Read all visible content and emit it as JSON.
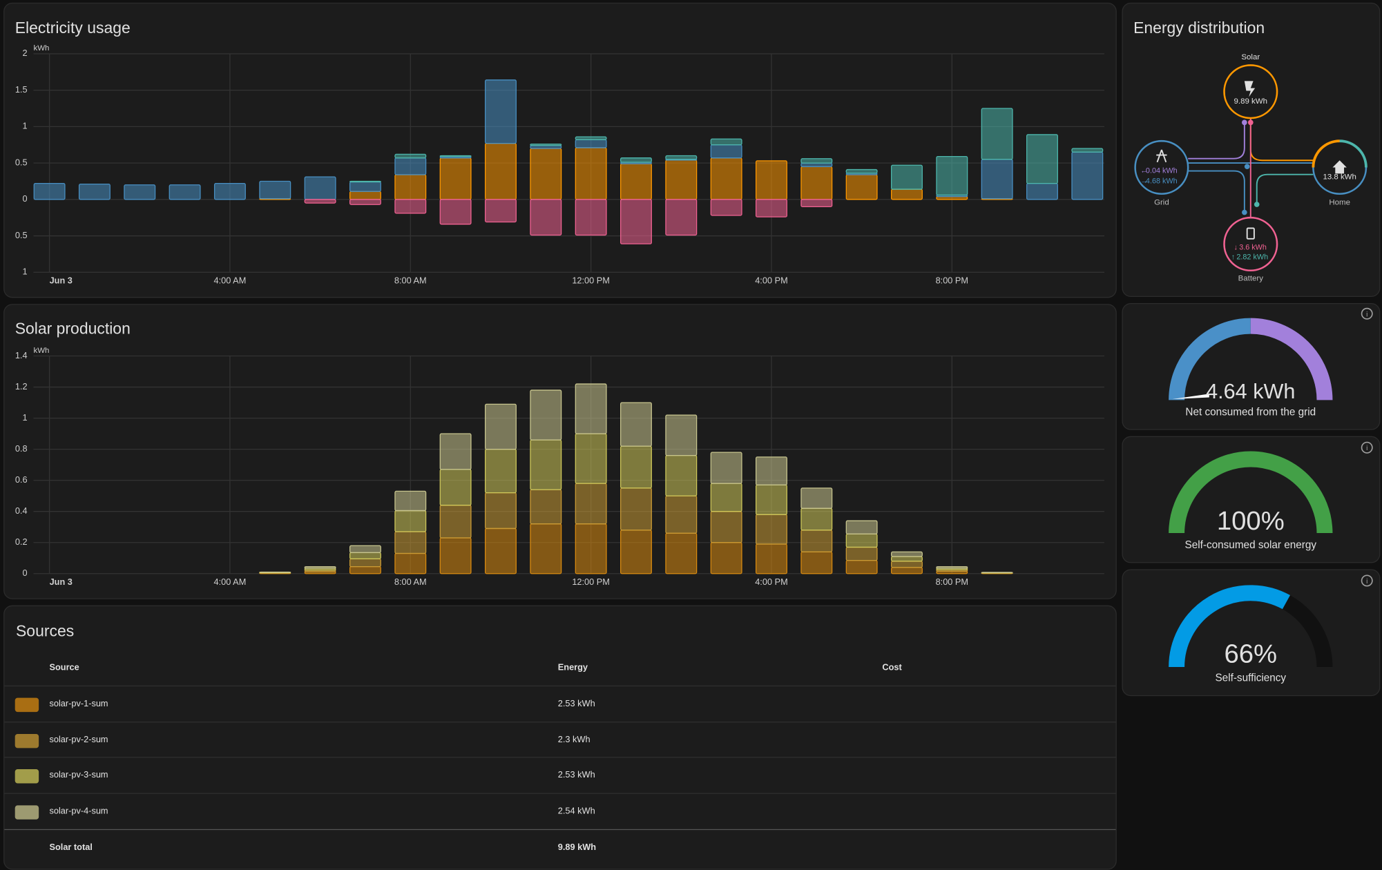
{
  "chart_data": [
    {
      "type": "bar",
      "title": "Electricity usage",
      "y_unit": "kWh",
      "stacked": true,
      "grid": true,
      "categories": [
        "Jun 3",
        null,
        null,
        null,
        "4:00 AM",
        null,
        null,
        null,
        "8:00 AM",
        null,
        null,
        null,
        "12:00 PM",
        null,
        null,
        null,
        "4:00 PM",
        null,
        null,
        null,
        "8:00 PM",
        null,
        null,
        null
      ],
      "ylim": [
        -1,
        2
      ],
      "yticks": [
        {
          "value": -1,
          "label": "1"
        },
        {
          "value": -0.5,
          "label": "0.5"
        },
        0,
        0.5,
        1,
        1.5,
        2
      ],
      "series": [
        {
          "color": "#ff9800",
          "values": [
            0,
            0,
            0,
            0,
            0,
            0.01,
            0,
            0.11,
            0.34,
            0.57,
            0.77,
            0.7,
            0.71,
            0.49,
            0.54,
            0.57,
            0.53,
            0.45,
            0.34,
            0.14,
            0.04,
            0.01,
            0,
            0
          ]
        },
        {
          "color": "#488fc2",
          "values": [
            0.22,
            0.21,
            0.2,
            0.2,
            0.22,
            0.24,
            0.31,
            0.13,
            0.23,
            0.02,
            0.87,
            0.04,
            0.11,
            0.02,
            0.01,
            0.18,
            0,
            0.05,
            0.02,
            0,
            0.02,
            0.54,
            0.22,
            0.65
          ]
        },
        {
          "color": "#4db6ac",
          "values": [
            0,
            0,
            0,
            0,
            0,
            0,
            0,
            0.01,
            0.05,
            0.01,
            0,
            0.02,
            0.04,
            0.06,
            0.05,
            0.08,
            0,
            0.06,
            0.05,
            0.33,
            0.53,
            0.7,
            0.67,
            0.05
          ]
        },
        {
          "color": "#f06292",
          "values": [
            0,
            0,
            0,
            0,
            0,
            0,
            -0.05,
            -0.07,
            -0.19,
            -0.34,
            -0.31,
            -0.49,
            -0.49,
            -0.61,
            -0.49,
            -0.22,
            -0.24,
            -0.1,
            0,
            0,
            0,
            0,
            0,
            0
          ]
        }
      ]
    },
    {
      "type": "bar",
      "title": "Solar production",
      "y_unit": "kWh",
      "stacked": true,
      "grid": true,
      "categories": [
        "Jun 3",
        null,
        null,
        null,
        "4:00 AM",
        null,
        null,
        null,
        "8:00 AM",
        null,
        null,
        null,
        "12:00 PM",
        null,
        null,
        null,
        "4:00 PM",
        null,
        null,
        null,
        "8:00 PM",
        null,
        null,
        null
      ],
      "ylim": [
        0,
        1.4
      ],
      "yticks": [
        0,
        0.2,
        0.4,
        0.6,
        0.8,
        1,
        1.2,
        1.4
      ],
      "series": [
        {
          "color": "#d88a10",
          "values": [
            0,
            0,
            0,
            0,
            0,
            0.003,
            0.012,
            0.045,
            0.13,
            0.23,
            0.29,
            0.32,
            0.32,
            0.28,
            0.26,
            0.2,
            0.19,
            0.14,
            0.085,
            0.04,
            0.015,
            0.002,
            0,
            0
          ]
        },
        {
          "color": "#c99a35",
          "values": [
            0,
            0,
            0,
            0,
            0,
            0.002,
            0.011,
            0.05,
            0.14,
            0.21,
            0.23,
            0.22,
            0.26,
            0.27,
            0.24,
            0.2,
            0.19,
            0.14,
            0.085,
            0.04,
            0.01,
            0.002,
            0,
            0
          ]
        },
        {
          "color": "#cfc85a",
          "values": [
            0,
            0,
            0,
            0,
            0,
            0.003,
            0.012,
            0.04,
            0.135,
            0.23,
            0.28,
            0.32,
            0.32,
            0.27,
            0.26,
            0.18,
            0.19,
            0.14,
            0.085,
            0.03,
            0.01,
            0.002,
            0,
            0
          ]
        },
        {
          "color": "#c8c58e",
          "values": [
            0,
            0,
            0,
            0,
            0,
            0.002,
            0.01,
            0.045,
            0.125,
            0.23,
            0.29,
            0.32,
            0.32,
            0.28,
            0.26,
            0.2,
            0.18,
            0.13,
            0.085,
            0.03,
            0.01,
            0.002,
            0,
            0
          ]
        }
      ]
    }
  ],
  "energy_distribution": {
    "title": "Energy distribution",
    "solar": {
      "label": "Solar",
      "value": "9.89 kWh"
    },
    "grid": {
      "label": "Grid",
      "returned": "0.04 kWh",
      "consumed": "4.68 kWh"
    },
    "home": {
      "label": "Home",
      "value": "13.8 kWh"
    },
    "battery": {
      "label": "Battery",
      "charged": "3.6 kWh",
      "discharged": "2.82 kWh"
    }
  },
  "gauges": [
    {
      "value": "4.64 kWh",
      "label": "Net consumed from the grid"
    },
    {
      "value": "100%",
      "label": "Self-consumed solar energy"
    },
    {
      "value": "66%",
      "label": "Self-sufficiency"
    }
  ],
  "sources_table": {
    "title": "Sources",
    "header": [
      "Source",
      "Energy",
      "Cost"
    ],
    "rows": [
      {
        "color": "#d88a10",
        "source": "solar-pv-1-sum",
        "energy": "2.53 kWh"
      },
      {
        "color": "#c99a35",
        "source": "solar-pv-2-sum",
        "energy": "2.3 kWh"
      },
      {
        "color": "#cfc85a",
        "source": "solar-pv-3-sum",
        "energy": "2.53 kWh"
      },
      {
        "color": "#c8c58e",
        "source": "solar-pv-4-sum",
        "energy": "2.54 kWh"
      }
    ],
    "total": {
      "label": "Solar total",
      "energy": "9.89 kWh"
    }
  }
}
